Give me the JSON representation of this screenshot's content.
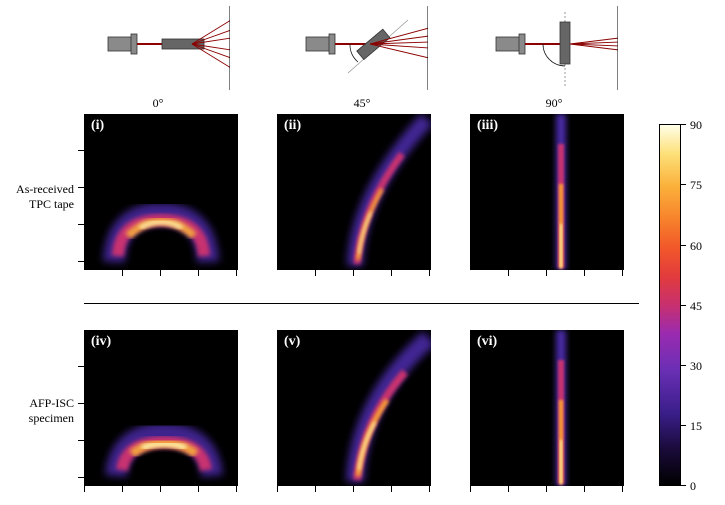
{
  "figure": {
    "angles": [
      "0°",
      "45°",
      "90°"
    ],
    "row_labels": [
      {
        "line1": "As-received",
        "line2": "TPC tape"
      },
      {
        "line1": "AFP-ISC",
        "line2": "specimen"
      }
    ],
    "panels": [
      {
        "label": "(i)",
        "pattern": "arc"
      },
      {
        "label": "(ii)",
        "pattern": "curve"
      },
      {
        "label": "(iii)",
        "pattern": "streak"
      },
      {
        "label": "(iv)",
        "pattern": "arc"
      },
      {
        "label": "(v)",
        "pattern": "curve"
      },
      {
        "label": "(vi)",
        "pattern": "streak"
      }
    ],
    "colorbar": {
      "ticks": [
        "90",
        "75",
        "60",
        "45",
        "30",
        "15",
        "0"
      ],
      "colormap": [
        "#000000",
        "#3a1e8a",
        "#9a2bb0",
        "#e23c3c",
        "#f7832b",
        "#fde078",
        "#ffffe8"
      ]
    },
    "colors": {
      "beam": "#8b0000",
      "instrument": "#8a8a8a",
      "sample": "#555555"
    }
  }
}
